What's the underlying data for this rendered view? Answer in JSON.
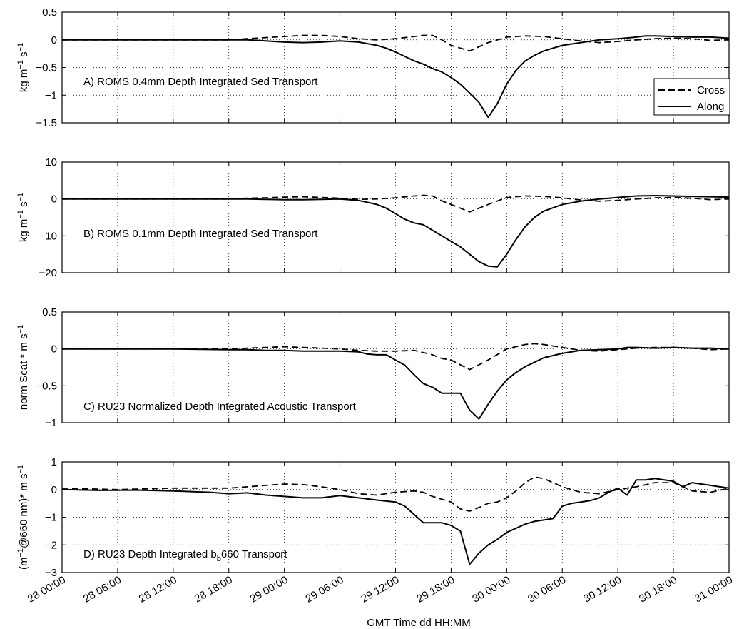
{
  "figure": {
    "xlabel": "GMT Time dd HH:MM",
    "x_tick_labels": [
      "28 00:00",
      "28 06:00",
      "28 12:00",
      "28 18:00",
      "29 00:00",
      "29 06:00",
      "29 12:00",
      "29 18:00",
      "30 00:00",
      "30 06:00",
      "30 12:00",
      "30 18:00",
      "31 00:00"
    ]
  },
  "legend": {
    "entries": [
      "Cross",
      "Along"
    ],
    "placement": "inside panel A, lower-right"
  },
  "colors": {
    "line": "#000000",
    "grid": "#000000",
    "background": "#ffffff"
  },
  "chart_data": [
    {
      "type": "line",
      "annotation": "A) ROMS 0.4mm Depth Integrated Sed Transport",
      "ylabel": {
        "base": "kg m",
        "exp1": "−1",
        "mid": " s",
        "exp2": "−1"
      },
      "xlim": [
        0,
        72
      ],
      "ylim": [
        -1.5,
        0.5
      ],
      "yticks": [
        -1.5,
        -1,
        -0.5,
        0,
        0.5
      ],
      "grid": true,
      "series": [
        {
          "name": "Cross",
          "style": "dashed",
          "x": [
            0,
            6,
            12,
            18,
            20,
            22,
            24,
            26,
            28,
            30,
            32,
            34,
            36,
            38,
            39,
            40,
            41,
            42,
            44,
            46,
            48,
            50,
            52,
            54,
            56,
            58,
            60,
            62,
            64,
            66,
            68,
            70,
            72
          ],
          "y": [
            0,
            0,
            0,
            0,
            0.02,
            0.04,
            0.06,
            0.08,
            0.08,
            0.06,
            0.02,
            0,
            0.02,
            0.06,
            0.08,
            0.08,
            0,
            -0.1,
            -0.2,
            -0.05,
            0.05,
            0.07,
            0.06,
            0.02,
            -0.02,
            -0.05,
            -0.03,
            0,
            0.02,
            0.03,
            0.02,
            -0.01,
            0
          ]
        },
        {
          "name": "Along",
          "style": "solid",
          "x": [
            0,
            6,
            12,
            18,
            20,
            22,
            24,
            26,
            28,
            30,
            32,
            34,
            35,
            36,
            37,
            38,
            39,
            40,
            41,
            42,
            43,
            44,
            45,
            46,
            47,
            48,
            49,
            50,
            51,
            52,
            54,
            56,
            58,
            60,
            62,
            63,
            64,
            66,
            68,
            70,
            72
          ],
          "y": [
            0,
            0,
            0,
            0,
            0,
            -0.02,
            -0.04,
            -0.05,
            -0.04,
            -0.02,
            -0.04,
            -0.1,
            -0.15,
            -0.22,
            -0.3,
            -0.38,
            -0.44,
            -0.52,
            -0.58,
            -0.68,
            -0.8,
            -0.96,
            -1.13,
            -1.4,
            -1.15,
            -0.8,
            -0.55,
            -0.38,
            -0.28,
            -0.2,
            -0.1,
            -0.05,
            0,
            0.02,
            0.05,
            0.07,
            0.07,
            0.06,
            0.05,
            0.05,
            0.03
          ]
        }
      ]
    },
    {
      "type": "line",
      "annotation": "B) ROMS 0.1mm Depth Integrated Sed Transport",
      "ylabel": {
        "base": "kg m",
        "exp1": "−1",
        "mid": " s",
        "exp2": "−1"
      },
      "xlim": [
        0,
        72
      ],
      "ylim": [
        -20,
        10
      ],
      "yticks": [
        -20,
        -10,
        0,
        10
      ],
      "grid": true,
      "series": [
        {
          "name": "Cross",
          "style": "dashed",
          "x": [
            0,
            6,
            12,
            18,
            20,
            22,
            24,
            26,
            28,
            30,
            32,
            34,
            36,
            38,
            39,
            40,
            41,
            42,
            44,
            46,
            48,
            50,
            52,
            54,
            56,
            58,
            60,
            62,
            64,
            66,
            68,
            70,
            72
          ],
          "y": [
            0,
            0,
            0,
            0,
            0.2,
            0.3,
            0.5,
            0.6,
            0.4,
            0.2,
            -0.1,
            0,
            0.3,
            0.8,
            1,
            0.8,
            -0.5,
            -1.5,
            -3.5,
            -1.5,
            0.4,
            0.8,
            0.7,
            0.3,
            -0.3,
            -0.6,
            -0.4,
            0,
            0.3,
            0.4,
            0.2,
            -0.2,
            0
          ]
        },
        {
          "name": "Along",
          "style": "solid",
          "x": [
            0,
            6,
            12,
            18,
            20,
            22,
            24,
            26,
            28,
            30,
            32,
            34,
            35,
            36,
            37,
            38,
            39,
            40,
            41,
            42,
            43,
            44,
            45,
            46,
            47,
            48,
            49,
            50,
            51,
            52,
            54,
            56,
            58,
            60,
            62,
            64,
            66,
            68,
            70,
            72
          ],
          "y": [
            0,
            0,
            0,
            0,
            0,
            -0.1,
            -0.2,
            -0.2,
            -0.1,
            0,
            -0.4,
            -1.5,
            -2.5,
            -4,
            -5.5,
            -6.5,
            -7,
            -8.5,
            -10,
            -11.5,
            -13,
            -15,
            -17,
            -18.2,
            -18.4,
            -15,
            -11,
            -7.5,
            -5,
            -3.3,
            -1.5,
            -0.6,
            0,
            0.4,
            0.8,
            0.9,
            0.8,
            0.7,
            0.6,
            0.5
          ]
        }
      ]
    },
    {
      "type": "line",
      "annotation": "C) RU23 Normalized Depth Integrated Acoustic Transport",
      "ylabel": {
        "base": "norm Scat * m s",
        "exp1": "−1",
        "mid": "",
        "exp2": ""
      },
      "xlim": [
        0,
        72
      ],
      "ylim": [
        -1,
        0.5
      ],
      "yticks": [
        -1,
        -0.5,
        0,
        0.5
      ],
      "grid": true,
      "series": [
        {
          "name": "Cross",
          "style": "dashed",
          "x": [
            0,
            6,
            12,
            18,
            20,
            22,
            24,
            26,
            28,
            30,
            32,
            34,
            36,
            38,
            40,
            41,
            42,
            44,
            46,
            48,
            50,
            51,
            52,
            54,
            56,
            58,
            60,
            62,
            64,
            66,
            68,
            70,
            72
          ],
          "y": [
            0,
            0,
            0,
            0,
            0.01,
            0.02,
            0.03,
            0.02,
            0.01,
            0,
            -0.02,
            -0.03,
            -0.03,
            -0.02,
            -0.08,
            -0.13,
            -0.15,
            -0.28,
            -0.15,
            0,
            0.06,
            0.07,
            0.06,
            0.02,
            -0.02,
            -0.03,
            -0.01,
            0.01,
            0.02,
            0.02,
            0.01,
            -0.01,
            0
          ]
        },
        {
          "name": "Along",
          "style": "solid",
          "x": [
            0,
            6,
            12,
            18,
            20,
            22,
            24,
            26,
            28,
            30,
            32,
            33,
            34,
            35,
            36,
            37,
            38,
            39,
            40,
            41,
            42,
            43,
            44,
            45,
            46,
            47,
            48,
            49,
            50,
            52,
            54,
            56,
            58,
            60,
            61,
            62,
            64,
            66,
            68,
            70,
            72
          ],
          "y": [
            0,
            0,
            0,
            -0.01,
            -0.01,
            -0.02,
            -0.02,
            -0.03,
            -0.03,
            -0.03,
            -0.04,
            -0.07,
            -0.08,
            -0.08,
            -0.15,
            -0.22,
            -0.35,
            -0.47,
            -0.52,
            -0.6,
            -0.6,
            -0.6,
            -0.83,
            -0.95,
            -0.75,
            -0.57,
            -0.42,
            -0.32,
            -0.24,
            -0.12,
            -0.06,
            -0.02,
            -0.01,
            0,
            0.02,
            0.02,
            0.01,
            0.02,
            0.01,
            0.01,
            0
          ]
        }
      ]
    },
    {
      "type": "line",
      "annotation": "D) RU23 Depth Integrated b",
      "annotation_sub": "b",
      "annotation_tail": "660 Transport",
      "ylabel": {
        "base": "(m",
        "exp1": "−1",
        "mid": "@660 nm)* m s",
        "exp2": "−1"
      },
      "xlim": [
        0,
        72
      ],
      "ylim": [
        -3,
        1
      ],
      "yticks": [
        -3,
        -2,
        -1,
        0,
        1
      ],
      "grid": true,
      "series": [
        {
          "name": "Cross",
          "style": "dashed",
          "x": [
            0,
            6,
            12,
            16,
            18,
            20,
            22,
            24,
            26,
            28,
            30,
            32,
            34,
            36,
            38,
            39,
            40,
            41,
            42,
            43,
            44,
            45,
            46,
            47,
            48,
            49,
            50,
            51,
            52,
            54,
            56,
            58,
            60,
            62,
            64,
            66,
            68,
            70,
            72
          ],
          "y": [
            0.05,
            0,
            0.05,
            0.05,
            0.05,
            0.1,
            0.15,
            0.2,
            0.18,
            0.1,
            0,
            -0.15,
            -0.2,
            -0.1,
            -0.05,
            -0.1,
            -0.25,
            -0.35,
            -0.45,
            -0.7,
            -0.78,
            -0.65,
            -0.5,
            -0.45,
            -0.3,
            -0.05,
            0.25,
            0.45,
            0.4,
            0.1,
            -0.1,
            -0.15,
            0,
            0.1,
            0.25,
            0.25,
            -0.05,
            -0.1,
            0.05
          ]
        },
        {
          "name": "Along",
          "style": "solid",
          "x": [
            0,
            4,
            8,
            12,
            16,
            18,
            20,
            22,
            24,
            26,
            28,
            30,
            32,
            34,
            36,
            37,
            38,
            39,
            40,
            41,
            42,
            43,
            44,
            45,
            46,
            47,
            48,
            49,
            50,
            51,
            52,
            53,
            54,
            55,
            56,
            57,
            58,
            59,
            60,
            61,
            62,
            63,
            64,
            65,
            66,
            67,
            68,
            69,
            70,
            71,
            72
          ],
          "y": [
            0,
            -0.03,
            -0.02,
            -0.05,
            -0.1,
            -0.15,
            -0.12,
            -0.2,
            -0.25,
            -0.3,
            -0.3,
            -0.22,
            -0.3,
            -0.38,
            -0.45,
            -0.6,
            -0.9,
            -1.2,
            -1.2,
            -1.2,
            -1.3,
            -1.5,
            -2.7,
            -2.3,
            -2,
            -1.8,
            -1.55,
            -1.4,
            -1.25,
            -1.15,
            -1.1,
            -1.05,
            -0.6,
            -0.5,
            -0.45,
            -0.4,
            -0.3,
            -0.1,
            0.05,
            -0.2,
            0.35,
            0.35,
            0.4,
            0.35,
            0.3,
            0.1,
            0.25,
            0.2,
            0.15,
            0.1,
            0.05
          ]
        }
      ]
    }
  ]
}
